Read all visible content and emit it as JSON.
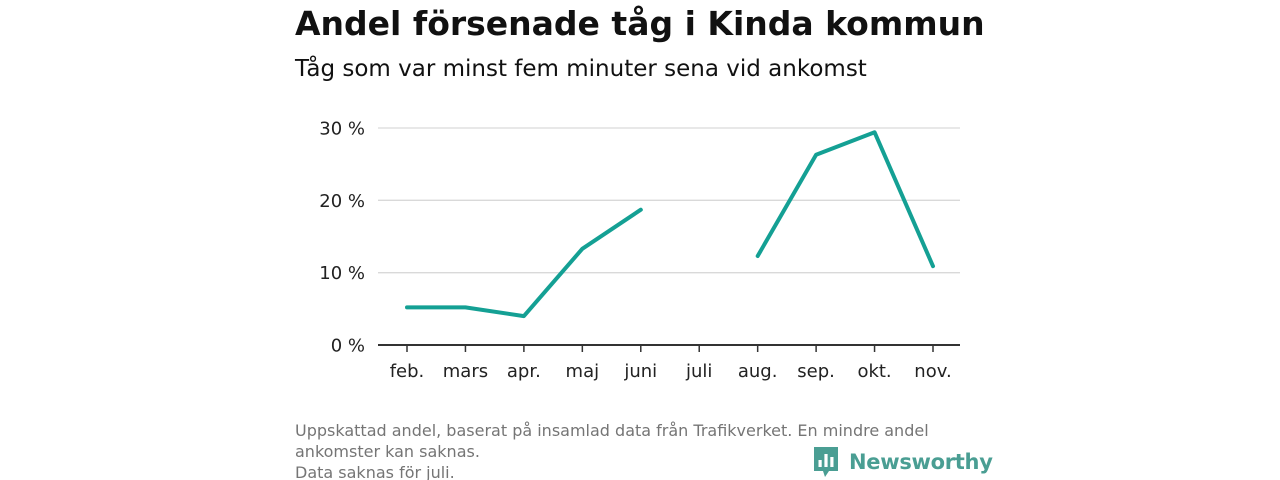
{
  "title": "Andel försenade tåg i Kinda kommun",
  "subtitle": "Tåg som var minst fem minuter sena vid ankomst",
  "footer": {
    "line1": "Uppskattad andel, baserat på insamlad data från Trafikverket. En mindre andel ankomster kan saknas.",
    "line2": "Data saknas för juli."
  },
  "brand": {
    "name": "Newsworthy",
    "logo_icon": "bar-chart-speech-bubble-icon"
  },
  "colors": {
    "line": "#14a094",
    "grid": "#d9d9d9",
    "axis": "#333333",
    "brand": "#4a9e93"
  },
  "chart_data": {
    "type": "line",
    "categories": [
      "feb.",
      "mars",
      "apr.",
      "maj",
      "juni",
      "juli",
      "aug.",
      "sep.",
      "okt.",
      "nov."
    ],
    "series": [
      {
        "values": [
          5.2,
          5.2,
          4.0,
          13.3,
          18.7,
          null,
          12.3,
          26.3,
          29.4,
          10.9
        ]
      }
    ],
    "ylim": [
      0,
      30
    ],
    "yticks": [
      0,
      10,
      20,
      30
    ],
    "ytick_labels": [
      "0 %",
      "10 %",
      "20 %",
      "30 %"
    ],
    "xlabel": "",
    "ylabel": "",
    "grid": true
  }
}
